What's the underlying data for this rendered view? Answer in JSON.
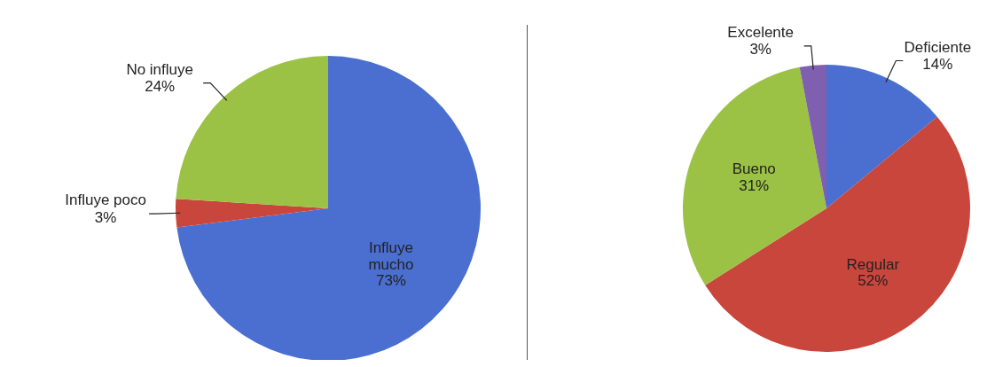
{
  "chart_data": [
    {
      "type": "pie",
      "categories": [
        "Influye mucho",
        "Influye poco",
        "No influye"
      ],
      "values": [
        73,
        3,
        24
      ],
      "colors": [
        "#4a6fd0",
        "#c8463c",
        "#9bc245"
      ],
      "value_labels": [
        "73%",
        "3%",
        "24%"
      ],
      "legend": false
    },
    {
      "type": "pie",
      "categories": [
        "Deficiente",
        "Regular",
        "Bueno",
        "Excelente"
      ],
      "values": [
        14,
        52,
        31,
        3
      ],
      "colors": [
        "#4a6fd0",
        "#c8463c",
        "#9bc245",
        "#7f5fb0"
      ],
      "value_labels": [
        "14%",
        "52%",
        "31%",
        "3%"
      ],
      "legend": false
    }
  ]
}
